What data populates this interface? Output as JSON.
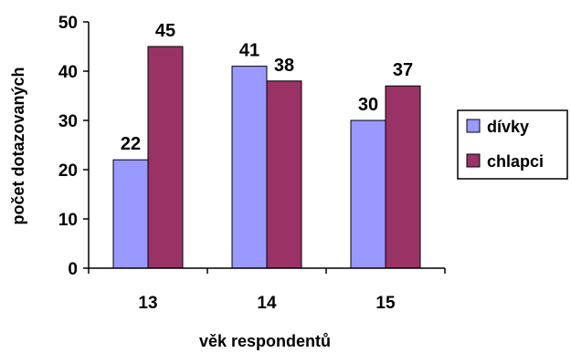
{
  "chart_data": {
    "type": "bar",
    "title": "",
    "xlabel": "věk respondentů",
    "ylabel": "počet dotazovaných",
    "categories": [
      "13",
      "14",
      "15"
    ],
    "series": [
      {
        "name": "dívky",
        "values": [
          22,
          41,
          30
        ],
        "color": "#9999FF"
      },
      {
        "name": "chlapci",
        "values": [
          45,
          38,
          37
        ],
        "color": "#993366"
      }
    ],
    "ylim": [
      0,
      50
    ],
    "yticks": [
      "0",
      "10",
      "20",
      "30",
      "40",
      "50"
    ],
    "grid": false,
    "legend_position": "right"
  }
}
